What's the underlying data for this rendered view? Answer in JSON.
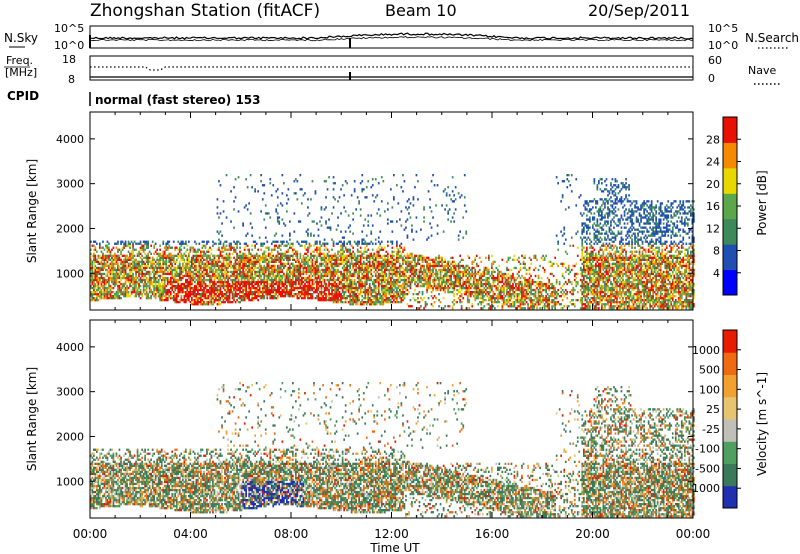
{
  "header": {
    "station": "Zhongshan Station (fitACF)",
    "beam": "Beam 10",
    "date": "20/Sep/2011"
  },
  "top_panels": {
    "noise": {
      "left_label": "N.Sky",
      "right_label": "N.Search",
      "left_ticks": [
        "10^5",
        "10^0"
      ],
      "right_ticks": [
        "10^5",
        "10^0"
      ]
    },
    "freq": {
      "left_label": "Freq.",
      "left_unit": "[MHz]",
      "left_ticks": [
        "18",
        "8"
      ],
      "right_label": "Nave",
      "right_ticks": [
        "60",
        "0"
      ]
    },
    "cpid": {
      "label": "CPID",
      "text": "normal (fast stereo) 153"
    }
  },
  "chart_data": [
    {
      "type": "heatmap",
      "name": "power",
      "ylabel": "Slant Range [km]",
      "y_ticks": [
        1000,
        2000,
        3000,
        4000
      ],
      "ylim": [
        180,
        4600
      ],
      "colorbar": {
        "label": "Power [dB]",
        "ticks": [
          "28",
          "24",
          "20",
          "16",
          "12",
          "8",
          "4"
        ],
        "colors": [
          "#0000ff",
          "#1f4fb0",
          "#3c8a5a",
          "#5aa84a",
          "#e8d800",
          "#f58a00",
          "#e81000"
        ]
      }
    },
    {
      "type": "heatmap",
      "name": "velocity",
      "ylabel": "Slant Range [km]",
      "y_ticks": [
        1000,
        2000,
        3000,
        4000
      ],
      "ylim": [
        180,
        4600
      ],
      "colorbar": {
        "label": "Velocity [m s^-1]",
        "ticks": [
          "1000",
          "500",
          "100",
          "25",
          "-25",
          "-100",
          "-500",
          "-1000"
        ],
        "colors": [
          "#2030b0",
          "#3a7a5a",
          "#4fa060",
          "#c0c0b8",
          "#e6c470",
          "#f2a030",
          "#ef6a10",
          "#e81a00"
        ]
      }
    }
  ],
  "xaxis": {
    "label": "Time UT",
    "ticks": [
      "00:00",
      "04:00",
      "08:00",
      "12:00",
      "16:00",
      "20:00",
      "00:00"
    ],
    "range_hours": [
      0,
      24
    ]
  }
}
